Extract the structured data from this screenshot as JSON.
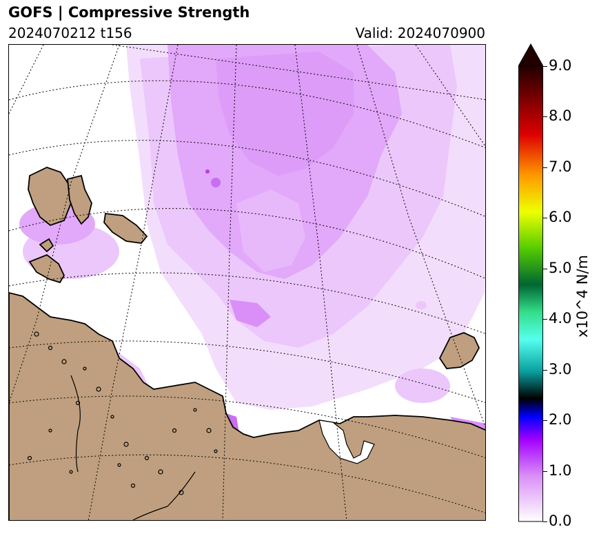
{
  "header": {
    "title": "GOFS  |  Compressive Strength",
    "run": "2024070212 t156",
    "valid": "Valid: 2024070900"
  },
  "map": {
    "land_color": "#bf9f7f",
    "coast_color": "#000000",
    "grid_style": "dotted",
    "field_color_low": "#f3ddfc",
    "field_color_mid": "#e2a8fa",
    "field_color_high": "#c76ef2"
  },
  "colorbar": {
    "label": "x10^4 N/m",
    "min": 0.0,
    "max": 9.0,
    "extend": "max",
    "ticks": [
      "0.0",
      "1.0",
      "2.0",
      "3.0",
      "4.0",
      "5.0",
      "6.0",
      "7.0",
      "8.0",
      "9.0"
    ],
    "stops": [
      "#ffffff",
      "#d98ff7",
      "#a200ff",
      "#0000ff",
      "#000000",
      "#0aa0a0",
      "#55ffee",
      "#33dd88",
      "#006633",
      "#55cc00",
      "#eeff00",
      "#ff9900",
      "#dd0000",
      "#220000"
    ]
  }
}
